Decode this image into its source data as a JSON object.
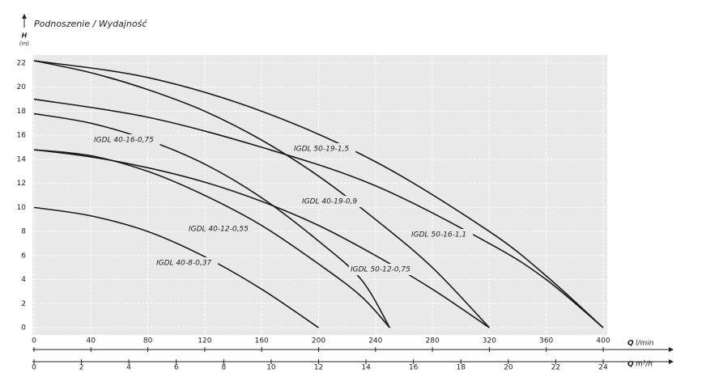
{
  "chart_data": {
    "type": "line",
    "title": "Podnoszenie / Wydajność",
    "y_label": "H",
    "y_unit": "(m)",
    "x_label": "Q",
    "x_unit": "l/min",
    "x2_label": "Q",
    "x2_unit": "m³/h",
    "xlim": [
      0,
      400
    ],
    "xticks": [
      0,
      40,
      80,
      120,
      160,
      200,
      240,
      280,
      320,
      360,
      400
    ],
    "x2lim": [
      0,
      24
    ],
    "x2ticks": [
      0,
      2,
      4,
      6,
      8,
      10,
      12,
      14,
      16,
      18,
      20,
      22,
      24
    ],
    "ylim": [
      0,
      22
    ],
    "yticks": [
      0,
      2,
      4,
      6,
      8,
      10,
      12,
      14,
      16,
      18,
      20,
      22
    ],
    "grid": true,
    "series": [
      {
        "name": "IGDL 40-8-0,37",
        "color": "#1a1a1a",
        "x": [
          0,
          40,
          80,
          120,
          160,
          200
        ],
        "values": [
          10,
          9.3,
          8,
          5.9,
          3.2,
          0
        ]
      },
      {
        "name": "IGDL 40-12-0,55",
        "color": "#1a1a1a",
        "x": [
          0,
          40,
          80,
          120,
          160,
          200,
          230,
          250
        ],
        "values": [
          14.8,
          14.3,
          13,
          11,
          8.5,
          5.3,
          2.6,
          0
        ]
      },
      {
        "name": "IGDL 40-16-0,75",
        "color": "#1a1a1a",
        "x": [
          0,
          40,
          80,
          120,
          160,
          200,
          230,
          250
        ],
        "values": [
          17.8,
          17,
          15.6,
          13.6,
          10.8,
          7.2,
          4,
          0
        ]
      },
      {
        "name": "IGDL 50-12-0,75",
        "color": "#1a1a1a",
        "x": [
          0,
          40,
          80,
          120,
          160,
          200,
          240,
          280,
          320
        ],
        "values": [
          14.8,
          14.2,
          13.3,
          12.1,
          10.5,
          8.5,
          6,
          3.2,
          0
        ]
      },
      {
        "name": "IGDL 40-19-0,9",
        "color": "#1a1a1a",
        "x": [
          0,
          40,
          80,
          120,
          160,
          200,
          240,
          280,
          320
        ],
        "values": [
          22.2,
          21.2,
          19.8,
          18,
          15.6,
          12.6,
          9,
          5,
          0
        ]
      },
      {
        "name": "IGDL 50-16-1,1",
        "color": "#1a1a1a",
        "x": [
          0,
          80,
          160,
          240,
          320,
          360,
          400
        ],
        "values": [
          19,
          17.5,
          15,
          11.8,
          7,
          4,
          0
        ]
      },
      {
        "name": "IGDL 50-19-1,5",
        "color": "#1a1a1a",
        "x": [
          0,
          80,
          160,
          240,
          320,
          360,
          400
        ],
        "values": [
          22.2,
          20.8,
          18,
          13.8,
          8,
          4.3,
          0
        ]
      }
    ]
  }
}
